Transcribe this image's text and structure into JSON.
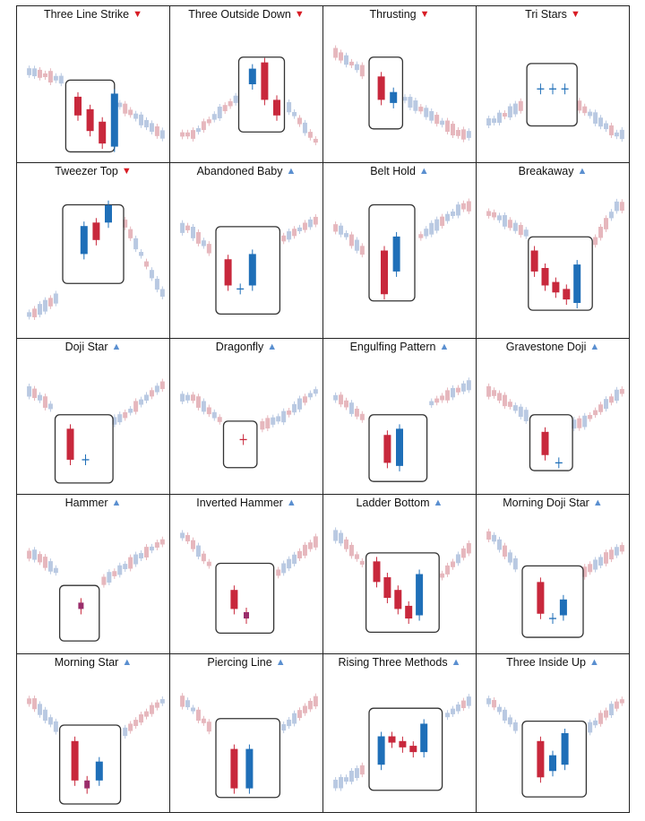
{
  "colors": {
    "bear": "#c8283c",
    "bull": "#1f6fb8",
    "down_arrow": "#d81c24",
    "up_arrow": "#5a8fd0",
    "faint_bear": "#e6b7bd",
    "faint_bull": "#b9c9e2",
    "border": "#222222"
  },
  "patterns": [
    {
      "name": "Three Line Strike",
      "direction": "bearish",
      "arrow": "▼",
      "icon": "down-triangle-icon"
    },
    {
      "name": "Three Outside Down",
      "direction": "bearish",
      "arrow": "▼",
      "icon": "down-triangle-icon"
    },
    {
      "name": "Thrusting",
      "direction": "bearish",
      "arrow": "▼",
      "icon": "down-triangle-icon"
    },
    {
      "name": "Tri Stars",
      "direction": "bearish",
      "arrow": "▼",
      "icon": "down-triangle-icon"
    },
    {
      "name": "Tweezer Top",
      "direction": "bearish",
      "arrow": "▼",
      "icon": "down-triangle-icon"
    },
    {
      "name": "Abandoned Baby",
      "direction": "bullish",
      "arrow": "▲",
      "icon": "up-triangle-icon"
    },
    {
      "name": "Belt Hold",
      "direction": "bullish",
      "arrow": "▲",
      "icon": "up-triangle-icon"
    },
    {
      "name": "Breakaway",
      "direction": "bullish",
      "arrow": "▲",
      "icon": "up-triangle-icon"
    },
    {
      "name": "Doji Star",
      "direction": "bullish",
      "arrow": "▲",
      "icon": "up-triangle-icon"
    },
    {
      "name": "Dragonfly",
      "direction": "bullish",
      "arrow": "▲",
      "icon": "up-triangle-icon"
    },
    {
      "name": "Engulfing Pattern",
      "direction": "bullish",
      "arrow": "▲",
      "icon": "up-triangle-icon"
    },
    {
      "name": "Gravestone Doji",
      "direction": "bullish",
      "arrow": "▲",
      "icon": "up-triangle-icon"
    },
    {
      "name": "Hammer",
      "direction": "bullish",
      "arrow": "▲",
      "icon": "up-triangle-icon"
    },
    {
      "name": "Inverted Hammer",
      "direction": "bullish",
      "arrow": "▲",
      "icon": "up-triangle-icon"
    },
    {
      "name": "Ladder Bottom",
      "direction": "bullish",
      "arrow": "▲",
      "icon": "up-triangle-icon"
    },
    {
      "name": "Morning Doji Star",
      "direction": "bullish",
      "arrow": "▲",
      "icon": "up-triangle-icon"
    },
    {
      "name": "Morning Star",
      "direction": "bullish",
      "arrow": "▲",
      "icon": "up-triangle-icon"
    },
    {
      "name": "Piercing Line",
      "direction": "bullish",
      "arrow": "▲",
      "icon": "up-triangle-icon"
    },
    {
      "name": "Rising Three Methods",
      "direction": "bullish",
      "arrow": "▲",
      "icon": "up-triangle-icon"
    },
    {
      "name": "Three Inside Up",
      "direction": "bullish",
      "arrow": "▲",
      "icon": "up-triangle-icon"
    }
  ]
}
